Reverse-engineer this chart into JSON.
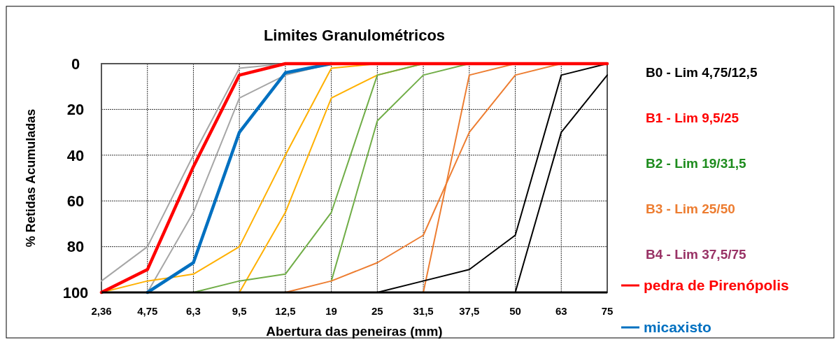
{
  "chart_data": {
    "type": "line",
    "title": "Limites Granulométricos",
    "xlabel": "Abertura das peneiras (mm)",
    "ylabel": "% Retidas Acumuladas",
    "categories": [
      "2,36",
      "4,75",
      "6,3",
      "9,5",
      "12,5",
      "19",
      "25",
      "31,5",
      "37,5",
      "50",
      "63",
      "75"
    ],
    "ylim": [
      100,
      0
    ],
    "yticks": [
      0,
      20,
      40,
      60,
      80,
      100
    ],
    "grid": true,
    "legend": "right",
    "marker": "none",
    "line_style": "solid",
    "annotations": [
      "B0 - Lim 4,75/12,5",
      "B1 - Lim 9,5/25",
      "B2 - Lim 19/31,5",
      "B3 - Lim 25/50",
      "B4 - Lim 37,5/75"
    ],
    "series": [
      {
        "color": "#a6a6a6",
        "values": [
          95,
          80,
          40,
          2,
          0,
          null,
          null,
          null,
          null,
          null,
          null,
          null
        ]
      },
      {
        "color": "#a6a6a6",
        "values": [
          null,
          100,
          65,
          15,
          5,
          0,
          null,
          null,
          null,
          null,
          null,
          null
        ]
      },
      {
        "color": "#ffb000",
        "values": [
          100,
          95,
          92,
          80,
          40,
          2,
          0,
          null,
          null,
          null,
          null,
          null
        ]
      },
      {
        "color": "#ffb000",
        "values": [
          null,
          null,
          null,
          100,
          65,
          15,
          5,
          0,
          null,
          null,
          null,
          null
        ]
      },
      {
        "color": "#70ad47",
        "values": [
          null,
          null,
          100,
          95,
          92,
          65,
          5,
          0,
          null,
          null,
          null,
          null
        ]
      },
      {
        "color": "#70ad47",
        "values": [
          null,
          null,
          null,
          null,
          null,
          95,
          25,
          5,
          0,
          null,
          null,
          null
        ]
      },
      {
        "color": "#ed7d31",
        "values": [
          null,
          null,
          null,
          null,
          100,
          95,
          87,
          75,
          30,
          5,
          0,
          null
        ]
      },
      {
        "color": "#ed7d31",
        "values": [
          null,
          null,
          null,
          null,
          null,
          null,
          null,
          100,
          5,
          0,
          null,
          null
        ]
      },
      {
        "color": "#000000",
        "values": [
          null,
          null,
          null,
          null,
          null,
          null,
          100,
          95,
          90,
          75,
          5,
          0
        ]
      },
      {
        "color": "#000000",
        "values": [
          null,
          null,
          null,
          null,
          null,
          null,
          null,
          null,
          null,
          100,
          30,
          5
        ]
      },
      {
        "name": "micaxisto",
        "color": "#0070c0",
        "values": [
          null,
          100,
          87,
          30,
          4,
          0,
          null,
          null,
          null,
          null,
          null,
          null
        ]
      },
      {
        "name": "pedra de Pirenópolis",
        "color": "#ff0000",
        "values": [
          100,
          90,
          45,
          5,
          0,
          0,
          0,
          0,
          0,
          0,
          0,
          0
        ]
      }
    ]
  }
}
